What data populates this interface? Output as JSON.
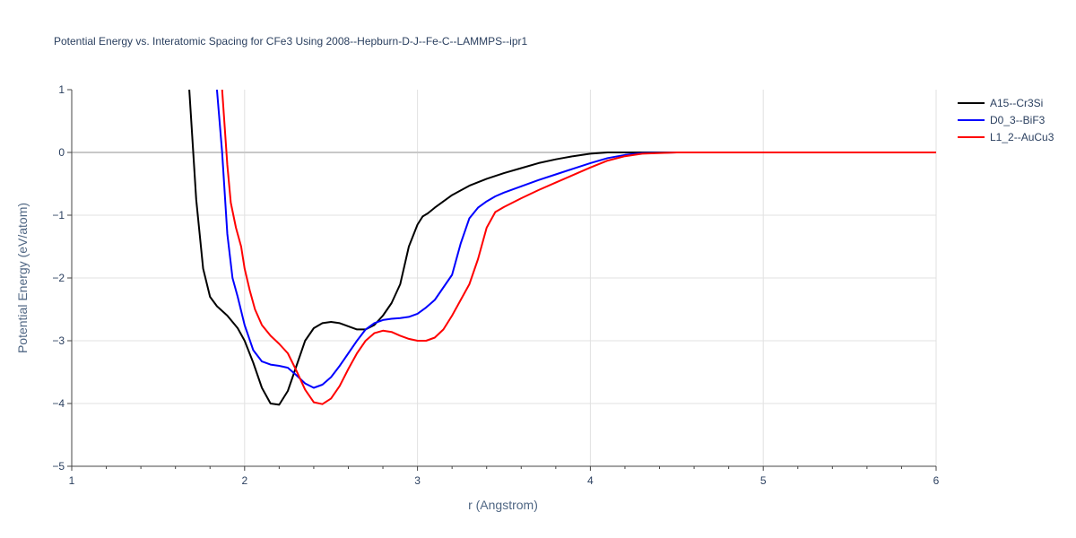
{
  "chart_data": {
    "type": "line",
    "title": "Potential Energy vs. Interatomic Spacing for CFe3 Using 2008--Hepburn-D-J--Fe-C--LAMMPS--ipr1",
    "xlabel": "r (Angstrom)",
    "ylabel": "Potential Energy (eV/atom)",
    "xlim": [
      1,
      6
    ],
    "ylim": [
      -5,
      1
    ],
    "x_ticks": [
      "1",
      "2",
      "3",
      "4",
      "5",
      "6"
    ],
    "y_ticks": [
      "1",
      "0",
      "−1",
      "−2",
      "−3",
      "−4",
      "−5"
    ],
    "grid": true,
    "legend_position": "top-right",
    "series": [
      {
        "name": "A15--Cr3Si",
        "color": "#000000",
        "x": [
          1.68,
          1.72,
          1.76,
          1.8,
          1.84,
          1.9,
          1.96,
          2.0,
          2.05,
          2.1,
          2.15,
          2.2,
          2.25,
          2.3,
          2.35,
          2.4,
          2.45,
          2.5,
          2.55,
          2.6,
          2.65,
          2.7,
          2.75,
          2.8,
          2.85,
          2.9,
          2.95,
          3.0,
          3.03,
          3.06,
          3.1,
          3.2,
          3.3,
          3.4,
          3.5,
          3.6,
          3.7,
          3.8,
          3.9,
          4.0,
          4.1,
          4.15,
          4.3,
          4.5,
          5.0,
          5.5,
          6.0
        ],
        "y": [
          1.0,
          -0.75,
          -1.85,
          -2.3,
          -2.45,
          -2.6,
          -2.8,
          -3.0,
          -3.35,
          -3.75,
          -4.0,
          -4.02,
          -3.8,
          -3.4,
          -3.0,
          -2.8,
          -2.72,
          -2.7,
          -2.72,
          -2.77,
          -2.82,
          -2.82,
          -2.75,
          -2.6,
          -2.4,
          -2.1,
          -1.5,
          -1.15,
          -1.02,
          -0.97,
          -0.88,
          -0.68,
          -0.53,
          -0.42,
          -0.33,
          -0.25,
          -0.17,
          -0.11,
          -0.06,
          -0.02,
          0.0,
          0.0,
          0.0,
          0.0,
          0.0,
          0.0,
          0.0
        ]
      },
      {
        "name": "D0_3--BiF3",
        "color": "#0000ff",
        "x": [
          1.84,
          1.87,
          1.9,
          1.93,
          1.96,
          2.0,
          2.05,
          2.1,
          2.15,
          2.2,
          2.25,
          2.3,
          2.35,
          2.4,
          2.45,
          2.5,
          2.55,
          2.6,
          2.65,
          2.7,
          2.75,
          2.8,
          2.85,
          2.9,
          2.95,
          3.0,
          3.05,
          3.1,
          3.15,
          3.2,
          3.25,
          3.3,
          3.35,
          3.4,
          3.45,
          3.5,
          3.6,
          3.7,
          3.8,
          3.9,
          4.0,
          4.1,
          4.2,
          4.3,
          4.5,
          5.0,
          5.5,
          6.0
        ],
        "y": [
          1.0,
          0.0,
          -1.3,
          -2.0,
          -2.3,
          -2.75,
          -3.15,
          -3.33,
          -3.38,
          -3.4,
          -3.43,
          -3.55,
          -3.68,
          -3.75,
          -3.7,
          -3.58,
          -3.4,
          -3.2,
          -3.0,
          -2.82,
          -2.72,
          -2.67,
          -2.65,
          -2.64,
          -2.62,
          -2.57,
          -2.47,
          -2.35,
          -2.15,
          -1.95,
          -1.45,
          -1.05,
          -0.88,
          -0.78,
          -0.7,
          -0.64,
          -0.54,
          -0.44,
          -0.35,
          -0.26,
          -0.17,
          -0.09,
          -0.04,
          -0.01,
          0.0,
          0.0,
          0.0,
          0.0
        ]
      },
      {
        "name": "L1_2--AuCu3",
        "color": "#ff0000",
        "x": [
          1.87,
          1.9,
          1.92,
          1.95,
          1.98,
          2.0,
          2.03,
          2.06,
          2.1,
          2.15,
          2.2,
          2.25,
          2.3,
          2.35,
          2.4,
          2.45,
          2.5,
          2.55,
          2.6,
          2.65,
          2.7,
          2.75,
          2.8,
          2.85,
          2.9,
          2.95,
          3.0,
          3.05,
          3.1,
          3.15,
          3.2,
          3.25,
          3.3,
          3.35,
          3.4,
          3.45,
          3.5,
          3.6,
          3.7,
          3.8,
          3.9,
          4.0,
          4.1,
          4.2,
          4.3,
          4.5,
          5.0,
          5.5,
          6.0
        ],
        "y": [
          1.0,
          -0.2,
          -0.8,
          -1.2,
          -1.5,
          -1.85,
          -2.2,
          -2.5,
          -2.75,
          -2.92,
          -3.05,
          -3.2,
          -3.48,
          -3.78,
          -3.98,
          -4.01,
          -3.92,
          -3.72,
          -3.45,
          -3.2,
          -3.0,
          -2.88,
          -2.84,
          -2.86,
          -2.92,
          -2.97,
          -3.0,
          -3.0,
          -2.95,
          -2.82,
          -2.6,
          -2.35,
          -2.1,
          -1.7,
          -1.2,
          -0.95,
          -0.87,
          -0.73,
          -0.6,
          -0.48,
          -0.36,
          -0.24,
          -0.13,
          -0.06,
          -0.02,
          0.0,
          0.0,
          0.0,
          0.0
        ]
      }
    ]
  }
}
